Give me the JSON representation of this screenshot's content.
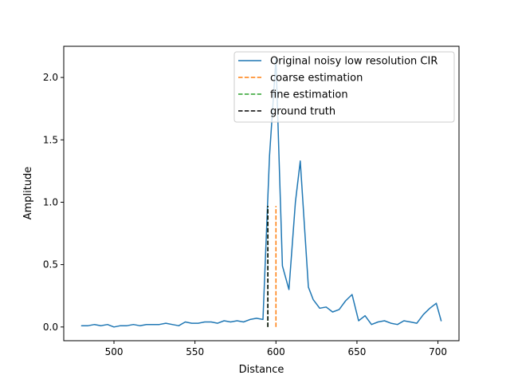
{
  "chart_data": {
    "type": "line",
    "xlabel": "Distance",
    "ylabel": "Amplitude",
    "xlim": [
      469,
      713
    ],
    "ylim": [
      -0.11,
      2.25
    ],
    "x_ticks": [
      500,
      550,
      600,
      650,
      700
    ],
    "y_ticks": [
      0.0,
      0.5,
      1.0,
      1.5,
      2.0
    ],
    "x_tick_labels": [
      "500",
      "550",
      "600",
      "650",
      "700"
    ],
    "y_tick_labels": [
      "0.0",
      "0.5",
      "1.0",
      "1.5",
      "2.0"
    ],
    "grid": false,
    "legend_position": "top-right",
    "series": [
      {
        "name": "Original noisy low resolution CIR",
        "style": "solid",
        "color": "#1f77b4",
        "x": [
          480,
          484,
          488,
          492,
          496,
          500,
          504,
          508,
          512,
          516,
          520,
          524,
          528,
          532,
          536,
          540,
          544,
          548,
          552,
          556,
          560,
          564,
          568,
          572,
          576,
          580,
          584,
          588,
          592,
          596,
          600,
          604,
          608,
          612,
          615,
          620,
          623,
          627,
          631,
          635,
          639,
          643,
          647,
          651,
          655,
          659,
          663,
          667,
          671,
          675,
          679,
          683,
          687,
          691,
          695,
          699,
          702
        ],
        "y": [
          0.01,
          0.01,
          0.02,
          0.01,
          0.02,
          0.0,
          0.01,
          0.01,
          0.02,
          0.01,
          0.02,
          0.02,
          0.02,
          0.03,
          0.02,
          0.01,
          0.04,
          0.03,
          0.03,
          0.04,
          0.04,
          0.03,
          0.05,
          0.04,
          0.05,
          0.04,
          0.06,
          0.07,
          0.06,
          1.37,
          2.15,
          0.49,
          0.3,
          1.0,
          1.33,
          0.32,
          0.22,
          0.15,
          0.16,
          0.12,
          0.14,
          0.21,
          0.26,
          0.05,
          0.09,
          0.02,
          0.04,
          0.05,
          0.03,
          0.02,
          0.05,
          0.04,
          0.03,
          0.1,
          0.15,
          0.19,
          0.05
        ]
      },
      {
        "name": "coarse estimation",
        "style": "dashed",
        "color": "#ff7f0e",
        "x": [
          600,
          600
        ],
        "y": [
          0.0,
          0.97
        ]
      },
      {
        "name": "fine estimation",
        "style": "dashed",
        "color": "#2ca02c",
        "x": [
          595,
          595
        ],
        "y": [
          0.0,
          0.97
        ]
      },
      {
        "name": "ground truth",
        "style": "dashed",
        "color": "#000000",
        "x": [
          595,
          595
        ],
        "y": [
          0.0,
          0.97
        ]
      }
    ]
  }
}
